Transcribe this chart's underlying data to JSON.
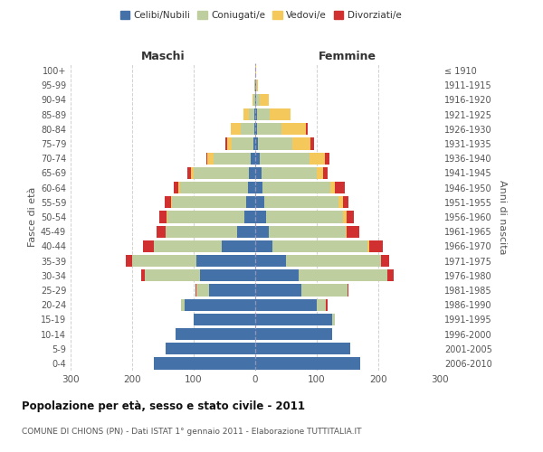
{
  "age_groups": [
    "0-4",
    "5-9",
    "10-14",
    "15-19",
    "20-24",
    "25-29",
    "30-34",
    "35-39",
    "40-44",
    "45-49",
    "50-54",
    "55-59",
    "60-64",
    "65-69",
    "70-74",
    "75-79",
    "80-84",
    "85-89",
    "90-94",
    "95-99",
    "100+"
  ],
  "birth_years": [
    "2006-2010",
    "2001-2005",
    "1996-2000",
    "1991-1995",
    "1986-1990",
    "1981-1985",
    "1976-1980",
    "1971-1975",
    "1966-1970",
    "1961-1965",
    "1956-1960",
    "1951-1955",
    "1946-1950",
    "1941-1945",
    "1936-1940",
    "1931-1935",
    "1926-1930",
    "1921-1925",
    "1916-1920",
    "1911-1915",
    "≤ 1910"
  ],
  "males": {
    "celibe": [
      165,
      145,
      130,
      100,
      115,
      75,
      90,
      95,
      55,
      30,
      18,
      15,
      12,
      10,
      8,
      3,
      2,
      1,
      0,
      0,
      0
    ],
    "coniugato": [
      0,
      0,
      0,
      0,
      5,
      20,
      90,
      105,
      110,
      115,
      125,
      120,
      110,
      90,
      60,
      35,
      22,
      10,
      3,
      1,
      0
    ],
    "vedovo": [
      0,
      0,
      0,
      0,
      0,
      0,
      0,
      0,
      0,
      0,
      1,
      2,
      3,
      5,
      10,
      8,
      15,
      8,
      2,
      0,
      0
    ],
    "divorziato": [
      0,
      0,
      0,
      0,
      1,
      2,
      5,
      10,
      18,
      15,
      12,
      10,
      8,
      5,
      2,
      2,
      0,
      0,
      0,
      0,
      0
    ]
  },
  "females": {
    "nubile": [
      170,
      155,
      125,
      125,
      100,
      75,
      70,
      50,
      28,
      22,
      18,
      15,
      12,
      10,
      8,
      5,
      3,
      3,
      2,
      1,
      0
    ],
    "coniugata": [
      0,
      0,
      0,
      5,
      15,
      75,
      145,
      155,
      155,
      125,
      125,
      120,
      110,
      90,
      80,
      55,
      40,
      20,
      5,
      1,
      0
    ],
    "vedova": [
      0,
      0,
      0,
      0,
      0,
      0,
      0,
      0,
      2,
      2,
      5,
      8,
      8,
      10,
      25,
      30,
      40,
      35,
      15,
      2,
      1
    ],
    "divorziata": [
      0,
      0,
      0,
      0,
      2,
      2,
      10,
      12,
      22,
      20,
      12,
      8,
      15,
      8,
      8,
      5,
      2,
      0,
      0,
      0,
      0
    ]
  },
  "colors": {
    "celibe": "#4472a8",
    "coniugato": "#bfce9e",
    "vedovo": "#f5c85c",
    "divorziato": "#d03030"
  },
  "xlim": 300,
  "title": "Popolazione per età, sesso e stato civile - 2011",
  "subtitle": "COMUNE DI CHIONS (PN) - Dati ISTAT 1° gennaio 2011 - Elaborazione TUTTITALIA.IT",
  "ylabel_left": "Fasce di età",
  "ylabel_right": "Anni di nascita",
  "xlabel_left": "Maschi",
  "xlabel_right": "Femmine",
  "legend_labels": [
    "Celibi/Nubili",
    "Coniugati/e",
    "Vedovi/e",
    "Divorziati/e"
  ],
  "background_color": "#ffffff",
  "grid_color": "#cccccc"
}
